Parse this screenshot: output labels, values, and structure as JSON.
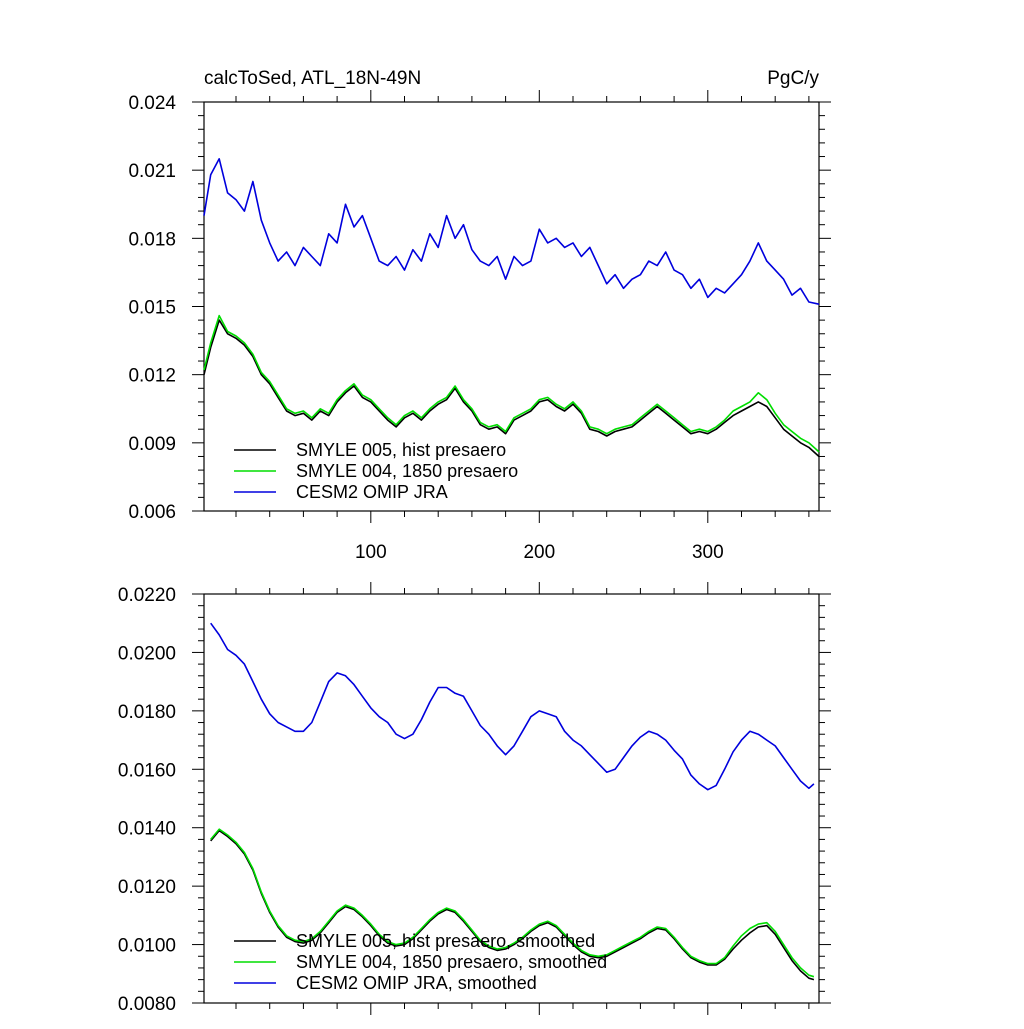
{
  "chart_data": [
    {
      "type": "line",
      "title": "calcToSed, ATL_18N-49N",
      "units": "PgC/y",
      "xlabel": "",
      "ylabel": "",
      "xlim": [
        1,
        366
      ],
      "ylim": [
        0.006,
        0.024
      ],
      "x_ticks": [
        100,
        200,
        300
      ],
      "y_ticks": [
        "0.006",
        "0.009",
        "0.012",
        "0.015",
        "0.018",
        "0.021",
        "0.024"
      ],
      "legend": "bottom-left",
      "grid": false,
      "series": [
        {
          "name": "SMYLE 005, hist presaero",
          "color": "#000000",
          "x": [
            1,
            5,
            10,
            15,
            20,
            25,
            30,
            35,
            40,
            45,
            50,
            55,
            60,
            65,
            70,
            75,
            80,
            85,
            90,
            95,
            100,
            105,
            110,
            115,
            120,
            125,
            130,
            135,
            140,
            145,
            150,
            155,
            160,
            165,
            170,
            175,
            180,
            185,
            190,
            195,
            200,
            205,
            210,
            215,
            220,
            225,
            230,
            235,
            240,
            245,
            250,
            255,
            260,
            265,
            270,
            275,
            280,
            285,
            290,
            295,
            300,
            305,
            310,
            315,
            320,
            325,
            330,
            335,
            340,
            345,
            350,
            355,
            360,
            366
          ],
          "y": [
            0.012,
            0.0132,
            0.0144,
            0.0138,
            0.0136,
            0.0133,
            0.0128,
            0.012,
            0.0116,
            0.011,
            0.0104,
            0.0102,
            0.0103,
            0.01,
            0.0104,
            0.0102,
            0.0108,
            0.0112,
            0.0115,
            0.011,
            0.0108,
            0.0104,
            0.01,
            0.0097,
            0.0101,
            0.0103,
            0.01,
            0.0104,
            0.0107,
            0.0109,
            0.0114,
            0.0108,
            0.0104,
            0.0098,
            0.0096,
            0.0097,
            0.0094,
            0.01,
            0.0102,
            0.0104,
            0.0108,
            0.0109,
            0.0106,
            0.0104,
            0.0107,
            0.0103,
            0.0096,
            0.0095,
            0.0093,
            0.0095,
            0.0096,
            0.0097,
            0.01,
            0.0103,
            0.0106,
            0.0103,
            0.01,
            0.0097,
            0.0094,
            0.0095,
            0.0094,
            0.0096,
            0.0099,
            0.0102,
            0.0104,
            0.0106,
            0.0108,
            0.0106,
            0.0101,
            0.0096,
            0.0093,
            0.009,
            0.0088,
            0.0084
          ]
        },
        {
          "name": "SMYLE 004, 1850 presaero",
          "color": "#00dd00",
          "x": [
            1,
            5,
            10,
            15,
            20,
            25,
            30,
            35,
            40,
            45,
            50,
            55,
            60,
            65,
            70,
            75,
            80,
            85,
            90,
            95,
            100,
            105,
            110,
            115,
            120,
            125,
            130,
            135,
            140,
            145,
            150,
            155,
            160,
            165,
            170,
            175,
            180,
            185,
            190,
            195,
            200,
            205,
            210,
            215,
            220,
            225,
            230,
            235,
            240,
            245,
            250,
            255,
            260,
            265,
            270,
            275,
            280,
            285,
            290,
            295,
            300,
            305,
            310,
            315,
            320,
            325,
            330,
            335,
            340,
            345,
            350,
            355,
            360,
            366
          ],
          "y": [
            0.0122,
            0.0134,
            0.0146,
            0.0139,
            0.0137,
            0.0134,
            0.0129,
            0.0121,
            0.0117,
            0.0111,
            0.0105,
            0.0103,
            0.0104,
            0.0101,
            0.0105,
            0.0103,
            0.0109,
            0.0113,
            0.0116,
            0.0111,
            0.0109,
            0.0105,
            0.0101,
            0.0098,
            0.0102,
            0.0104,
            0.0101,
            0.0105,
            0.0108,
            0.011,
            0.0115,
            0.0109,
            0.0105,
            0.0099,
            0.0097,
            0.0098,
            0.0095,
            0.0101,
            0.0103,
            0.0105,
            0.0109,
            0.011,
            0.0107,
            0.0105,
            0.0108,
            0.0104,
            0.0097,
            0.0096,
            0.0094,
            0.0096,
            0.0097,
            0.0098,
            0.0101,
            0.0104,
            0.0107,
            0.0104,
            0.0101,
            0.0098,
            0.0095,
            0.0096,
            0.0095,
            0.0097,
            0.01,
            0.0104,
            0.0106,
            0.0108,
            0.0112,
            0.0109,
            0.0103,
            0.0098,
            0.0095,
            0.0092,
            0.009,
            0.0086
          ]
        },
        {
          "name": "CESM2 OMIP JRA",
          "color": "#0000dd",
          "x": [
            1,
            5,
            10,
            15,
            20,
            25,
            30,
            35,
            40,
            45,
            50,
            55,
            60,
            65,
            70,
            75,
            80,
            85,
            90,
            95,
            100,
            105,
            110,
            115,
            120,
            125,
            130,
            135,
            140,
            145,
            150,
            155,
            160,
            165,
            170,
            175,
            180,
            185,
            190,
            195,
            200,
            205,
            210,
            215,
            220,
            225,
            230,
            235,
            240,
            245,
            250,
            255,
            260,
            265,
            270,
            275,
            280,
            285,
            290,
            295,
            300,
            305,
            310,
            315,
            320,
            325,
            330,
            335,
            340,
            345,
            350,
            355,
            360,
            366
          ],
          "y": [
            0.019,
            0.0208,
            0.0215,
            0.02,
            0.0197,
            0.0192,
            0.0205,
            0.0188,
            0.0178,
            0.017,
            0.0174,
            0.0168,
            0.0176,
            0.0172,
            0.0168,
            0.0182,
            0.0178,
            0.0195,
            0.0185,
            0.019,
            0.018,
            0.017,
            0.0168,
            0.0172,
            0.0166,
            0.0175,
            0.017,
            0.0182,
            0.0176,
            0.019,
            0.018,
            0.0186,
            0.0175,
            0.017,
            0.0168,
            0.0172,
            0.0162,
            0.0172,
            0.0168,
            0.017,
            0.0184,
            0.0178,
            0.018,
            0.0176,
            0.0178,
            0.0172,
            0.0176,
            0.0168,
            0.016,
            0.0164,
            0.0158,
            0.0162,
            0.0164,
            0.017,
            0.0168,
            0.0174,
            0.0166,
            0.0164,
            0.0158,
            0.0162,
            0.0154,
            0.0158,
            0.0156,
            0.016,
            0.0164,
            0.017,
            0.0178,
            0.017,
            0.0166,
            0.0162,
            0.0155,
            0.0158,
            0.0152,
            0.0151
          ]
        }
      ]
    },
    {
      "type": "line",
      "title": "",
      "xlabel": "",
      "ylabel": "",
      "xlim": [
        1,
        366
      ],
      "ylim": [
        0.008,
        0.022
      ],
      "x_ticks": [
        100,
        200,
        300
      ],
      "y_ticks": [
        "0.0080",
        "0.0100",
        "0.0120",
        "0.0140",
        "0.0160",
        "0.0180",
        "0.0200",
        "0.0220"
      ],
      "legend": "bottom-left",
      "grid": false,
      "series": [
        {
          "name": "SMYLE 005, hist presaero, smoothed",
          "color": "#000000",
          "x": [
            5,
            10,
            15,
            20,
            25,
            30,
            35,
            40,
            45,
            50,
            55,
            60,
            65,
            70,
            75,
            80,
            85,
            90,
            95,
            100,
            105,
            110,
            115,
            120,
            125,
            130,
            135,
            140,
            145,
            150,
            155,
            160,
            165,
            170,
            175,
            180,
            185,
            190,
            195,
            200,
            205,
            210,
            215,
            220,
            225,
            230,
            235,
            240,
            245,
            250,
            255,
            260,
            265,
            270,
            275,
            280,
            285,
            290,
            295,
            300,
            305,
            310,
            315,
            320,
            325,
            330,
            335,
            340,
            345,
            350,
            355,
            360,
            363
          ],
          "y": [
            0.01355,
            0.0139,
            0.0137,
            0.01345,
            0.0131,
            0.01255,
            0.01175,
            0.0111,
            0.0106,
            0.01025,
            0.0101,
            0.01005,
            0.01015,
            0.0104,
            0.01075,
            0.0111,
            0.0113,
            0.0112,
            0.01095,
            0.01065,
            0.0103,
            0.01005,
            0.00995,
            0.01,
            0.0102,
            0.0105,
            0.0108,
            0.01105,
            0.0112,
            0.0111,
            0.0108,
            0.01045,
            0.0101,
            0.0099,
            0.0098,
            0.00985,
            0.01,
            0.0102,
            0.01045,
            0.01065,
            0.01075,
            0.0106,
            0.0103,
            0.01,
            0.00975,
            0.0096,
            0.00955,
            0.0096,
            0.00975,
            0.0099,
            0.01005,
            0.0102,
            0.0104,
            0.01055,
            0.0105,
            0.0102,
            0.00985,
            0.00955,
            0.0094,
            0.0093,
            0.0093,
            0.0095,
            0.00985,
            0.01015,
            0.0104,
            0.0106,
            0.01065,
            0.01035,
            0.0099,
            0.00945,
            0.0091,
            0.00885,
            0.0088
          ]
        },
        {
          "name": "SMYLE 004, 1850 presaero, smoothed",
          "color": "#00dd00",
          "x": [
            5,
            10,
            15,
            20,
            25,
            30,
            35,
            40,
            45,
            50,
            55,
            60,
            65,
            70,
            75,
            80,
            85,
            90,
            95,
            100,
            105,
            110,
            115,
            120,
            125,
            130,
            135,
            140,
            145,
            150,
            155,
            160,
            165,
            170,
            175,
            180,
            185,
            190,
            195,
            200,
            205,
            210,
            215,
            220,
            225,
            230,
            235,
            240,
            245,
            250,
            255,
            260,
            265,
            270,
            275,
            280,
            285,
            290,
            295,
            300,
            305,
            310,
            315,
            320,
            325,
            330,
            335,
            340,
            345,
            350,
            355,
            360,
            363
          ],
          "y": [
            0.0136,
            0.01395,
            0.01375,
            0.0135,
            0.01315,
            0.0126,
            0.0118,
            0.01115,
            0.01065,
            0.0103,
            0.01015,
            0.0101,
            0.0102,
            0.01045,
            0.0108,
            0.01115,
            0.01135,
            0.01125,
            0.011,
            0.0107,
            0.01035,
            0.0101,
            0.01,
            0.01005,
            0.01025,
            0.01055,
            0.01085,
            0.0111,
            0.01125,
            0.01115,
            0.01085,
            0.0105,
            0.01015,
            0.00995,
            0.00985,
            0.0099,
            0.01005,
            0.01025,
            0.0105,
            0.0107,
            0.0108,
            0.01065,
            0.01035,
            0.01005,
            0.0098,
            0.00965,
            0.0096,
            0.00965,
            0.0098,
            0.00995,
            0.0101,
            0.01025,
            0.01045,
            0.0106,
            0.01055,
            0.01025,
            0.0099,
            0.0096,
            0.00945,
            0.00935,
            0.00935,
            0.00955,
            0.00995,
            0.0103,
            0.01055,
            0.0107,
            0.01075,
            0.01045,
            0.01,
            0.00955,
            0.0092,
            0.00895,
            0.0089
          ]
        },
        {
          "name": "CESM2 OMIP JRA, smoothed",
          "color": "#0000dd",
          "x": [
            5,
            10,
            15,
            20,
            25,
            30,
            35,
            40,
            45,
            50,
            55,
            60,
            65,
            70,
            75,
            80,
            85,
            90,
            95,
            100,
            105,
            110,
            115,
            120,
            125,
            130,
            135,
            140,
            145,
            150,
            155,
            160,
            165,
            170,
            175,
            180,
            185,
            190,
            195,
            200,
            205,
            210,
            215,
            220,
            225,
            230,
            235,
            240,
            245,
            250,
            255,
            260,
            265,
            270,
            275,
            280,
            285,
            290,
            295,
            300,
            305,
            310,
            315,
            320,
            325,
            330,
            335,
            340,
            345,
            350,
            355,
            360,
            363
          ],
          "y": [
            0.021,
            0.0206,
            0.0201,
            0.0199,
            0.0196,
            0.019,
            0.0184,
            0.0179,
            0.0176,
            0.01745,
            0.0173,
            0.0173,
            0.0176,
            0.0183,
            0.019,
            0.0193,
            0.0192,
            0.0189,
            0.0185,
            0.0181,
            0.0178,
            0.0176,
            0.0172,
            0.01705,
            0.0172,
            0.0177,
            0.0183,
            0.0188,
            0.0188,
            0.0186,
            0.0185,
            0.018,
            0.0175,
            0.0172,
            0.0168,
            0.0165,
            0.0168,
            0.0173,
            0.0178,
            0.018,
            0.0179,
            0.0178,
            0.0173,
            0.017,
            0.0168,
            0.0165,
            0.0162,
            0.0159,
            0.016,
            0.0164,
            0.0168,
            0.0171,
            0.0173,
            0.0172,
            0.017,
            0.01665,
            0.01635,
            0.0158,
            0.0155,
            0.0153,
            0.01545,
            0.016,
            0.0166,
            0.017,
            0.0173,
            0.0172,
            0.017,
            0.0168,
            0.0164,
            0.016,
            0.0156,
            0.01535,
            0.0155
          ]
        }
      ]
    }
  ]
}
